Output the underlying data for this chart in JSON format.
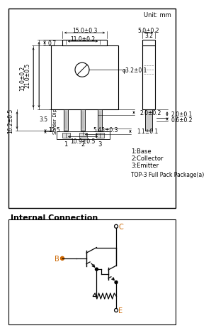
{
  "unit_label": "Unit: mm",
  "bg_color": "#ffffff",
  "line_color": "#000000",
  "gray_color": "#888888",
  "title_section": "Internal Connection",
  "pin_labels": [
    "1",
    "2",
    "3"
  ],
  "legend_lines": [
    "1:Base",
    "2:Collector",
    "3:Emitter"
  ],
  "package_label": "TOP-3 Full Pack Package(a)",
  "dims": {
    "top_width1": "15.0±0.3",
    "top_width2": "11.0±0.2",
    "hole_dia": "φ3.2±0.1",
    "total_height": "21.0±0.5",
    "body_height": "15.0±0.2",
    "tab_height": "0.7",
    "left_lower": "16.2±0.5",
    "left_lower2": "12.5",
    "solder_dip": "Solder Dip",
    "solder_dip_val": "3.5",
    "pin_space": "5.45±0.3",
    "pin_spread": "10.9±0.5",
    "pin_width": "2.0±0.2",
    "pin_depth": "1.1±0.1",
    "right_width": "5.0±0.2",
    "right_w2": "3.2",
    "right_h1": "2.0±0.1",
    "right_h2": "0.6±0.2"
  }
}
